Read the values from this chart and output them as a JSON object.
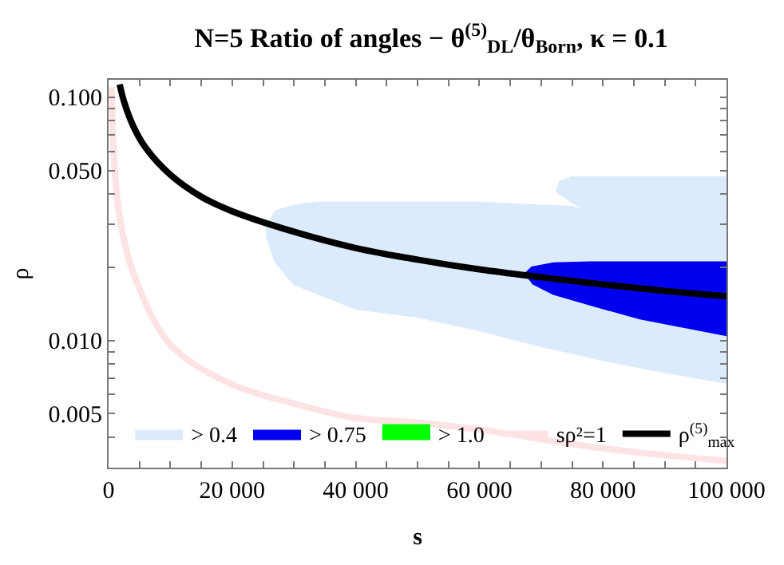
{
  "chart_data": {
    "type": "line",
    "title": "N=5 Ratio of angles − θ$^{(5)}$$_{DL}$/θ$_{Born}$, κ = 0.1",
    "xlabel": "s",
    "ylabel": "ρ",
    "log": "y",
    "xlim": [
      0,
      100000
    ],
    "ylim": [
      0.003,
      0.118
    ],
    "xticks": [
      0,
      {
        "value": 5000,
        "label": null
      },
      {
        "value": 10000,
        "label": null
      },
      {
        "value": 15000,
        "label": null
      },
      {
        "value": 20000,
        "label": "20 000"
      },
      {
        "value": 25000,
        "label": null
      },
      {
        "value": 30000,
        "label": null
      },
      {
        "value": 35000,
        "label": null
      },
      {
        "value": 40000,
        "label": "40 000"
      },
      {
        "value": 45000,
        "label": null
      },
      {
        "value": 50000,
        "label": null
      },
      {
        "value": 55000,
        "label": null
      },
      {
        "value": 60000,
        "label": "60 000"
      },
      {
        "value": 65000,
        "label": null
      },
      {
        "value": 70000,
        "label": null
      },
      {
        "value": 75000,
        "label": null
      },
      {
        "value": 80000,
        "label": "80 000"
      },
      {
        "value": 85000,
        "label": null
      },
      {
        "value": 90000,
        "label": null
      },
      {
        "value": 95000,
        "label": null
      },
      {
        "value": 100000,
        "label": "100 000"
      }
    ],
    "yticks": [
      {
        "value": 0.004,
        "label": null
      },
      {
        "value": 0.005,
        "label": "0.005"
      },
      {
        "value": 0.006,
        "label": null
      },
      {
        "value": 0.007,
        "label": null
      },
      {
        "value": 0.008,
        "label": null
      },
      {
        "value": 0.009,
        "label": null
      },
      {
        "value": 0.01,
        "label": "0.010"
      },
      {
        "value": 0.02,
        "label": null
      },
      {
        "value": 0.03,
        "label": null
      },
      {
        "value": 0.04,
        "label": null
      },
      {
        "value": 0.05,
        "label": "0.050"
      },
      {
        "value": 0.06,
        "label": null
      },
      {
        "value": 0.07,
        "label": null
      },
      {
        "value": 0.08,
        "label": null
      },
      {
        "value": 0.09,
        "label": null
      },
      {
        "value": 0.1,
        "label": "0.100"
      }
    ],
    "legend": "bottom",
    "series": [
      {
        "name": "> 0.4",
        "type": "area",
        "color": "#dcebfc",
        "x": [
          25500,
          27000,
          30000,
          34000,
          40000,
          50000,
          60000,
          69000,
          75000,
          77500,
          75000,
          72500,
          73000,
          75000,
          80000,
          90000,
          100000,
          100000,
          90000,
          80000,
          69000,
          60000,
          50000,
          40000,
          34000,
          30000,
          27000,
          25500
        ],
        "values": [
          0.029,
          0.034,
          0.036,
          0.037,
          0.037,
          0.037,
          0.037,
          0.036,
          0.0355,
          0.034,
          0.037,
          0.041,
          0.045,
          0.047,
          0.047,
          0.047,
          0.047,
          0.0067,
          0.0074,
          0.0083,
          0.0096,
          0.011,
          0.0125,
          0.0135,
          0.0155,
          0.017,
          0.021,
          0.027
        ]
      },
      {
        "name": "> 0.75",
        "type": "area",
        "color": "#0000f0",
        "x": [
          67300,
          68500,
          72000,
          78000,
          86000,
          100000,
          100000,
          86000,
          78000,
          72000,
          68500
        ],
        "values": [
          0.0187,
          0.02,
          0.0208,
          0.021,
          0.021,
          0.021,
          0.0105,
          0.0123,
          0.014,
          0.0155,
          0.0172
        ]
      },
      {
        "name": "> 1.0",
        "type": "area",
        "color": "#00ff00"
      },
      {
        "name": "sρ²=1",
        "color": "#fde3e3",
        "x": [
          500,
          1000,
          2000,
          4000,
          10000,
          20000,
          30000,
          40000,
          50000,
          60000,
          80000,
          100000
        ],
        "values": [
          0.11,
          0.05,
          0.03,
          0.019,
          0.0096,
          0.0066,
          0.0055,
          0.0048,
          0.0046,
          0.0043,
          0.0036,
          0.0032
        ]
      },
      {
        "name": "ρ$^{(5)}$$_{max}$",
        "color": "#000000",
        "x": [
          1800,
          2500,
          4000,
          6000,
          10000,
          15000,
          20000,
          30000,
          40000,
          50000,
          60000,
          70000,
          80000,
          90000,
          100000
        ],
        "values": [
          0.113,
          0.096,
          0.076,
          0.062,
          0.048,
          0.039,
          0.034,
          0.028,
          0.024,
          0.0215,
          0.0196,
          0.0182,
          0.017,
          0.016,
          0.0152
        ]
      }
    ]
  }
}
